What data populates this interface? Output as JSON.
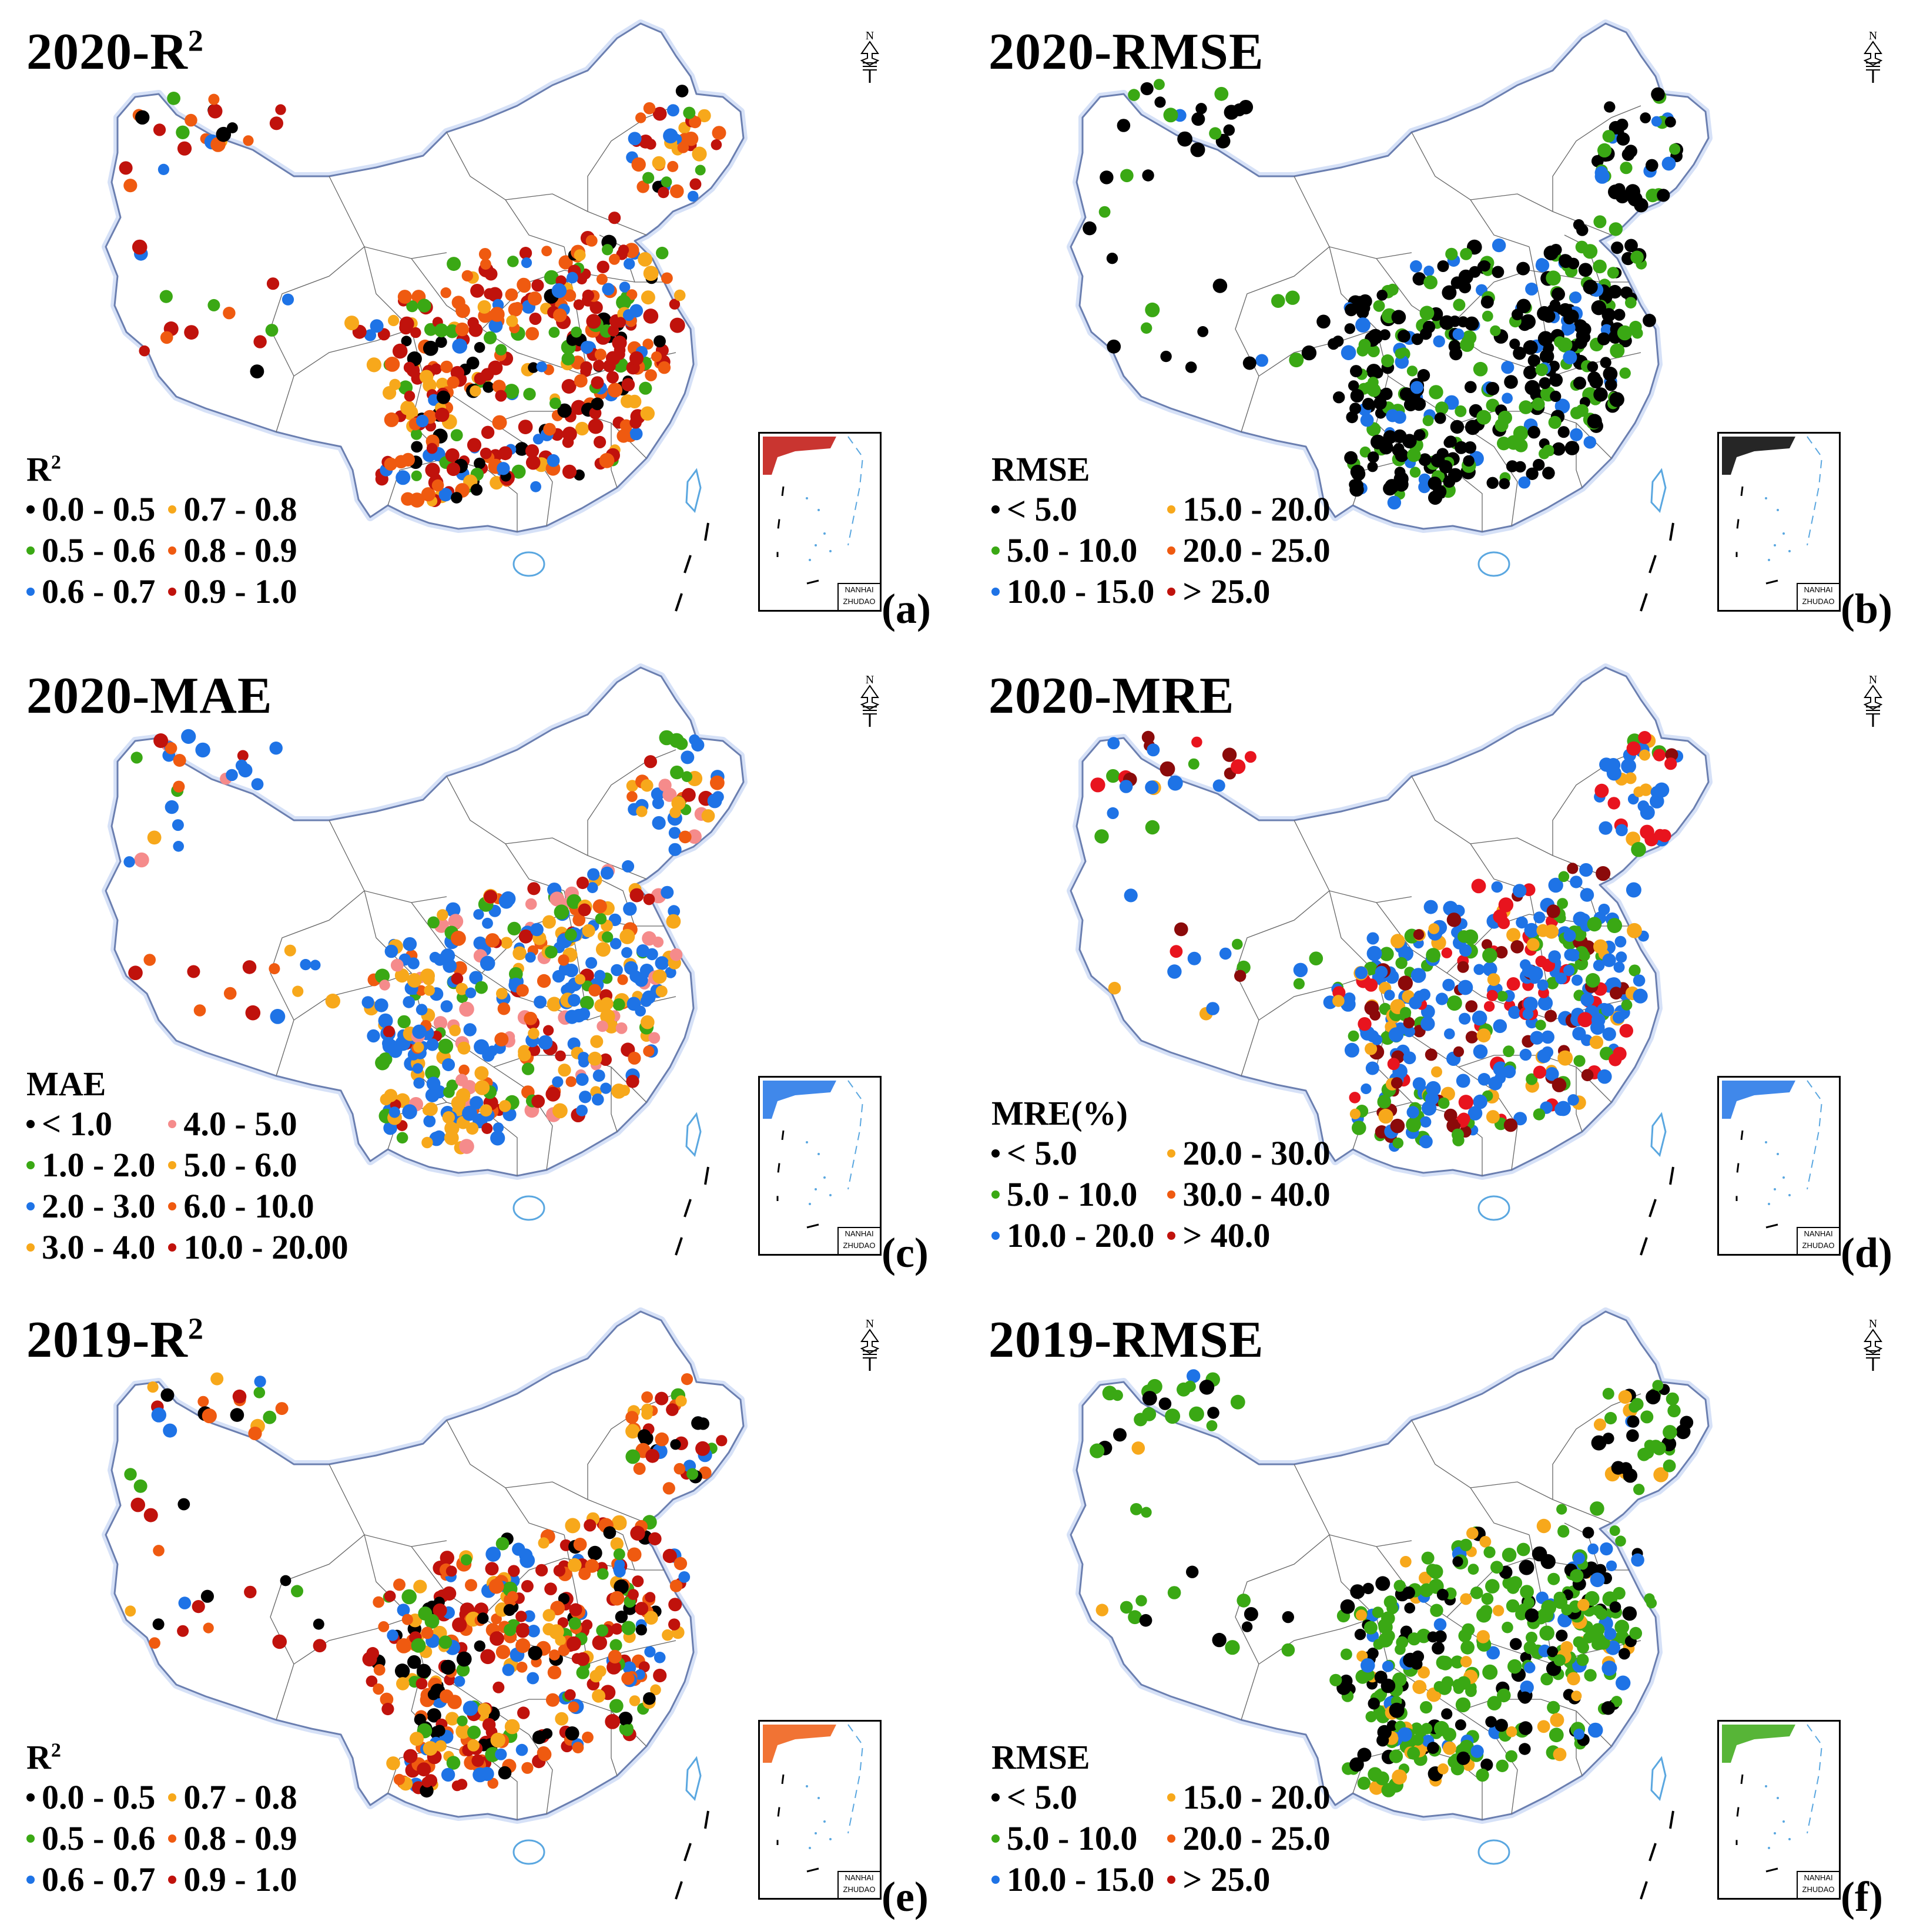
{
  "colors": {
    "black": "#000000",
    "green": "#3aa814",
    "blue": "#1e73e6",
    "orange": "#f7a81b",
    "darkorange": "#ef5a10",
    "red": "#c0120c",
    "pink": "#f58b8b",
    "brightred": "#e8141e",
    "darkred": "#8b0a0a",
    "border": "#666666",
    "coast": "#8aa9e8",
    "sea": "#5aa7e0"
  },
  "inset_caption": {
    "line1": "NANHAI",
    "line2": "ZHUDAO"
  },
  "compass_letter": "N",
  "panels": [
    {
      "id": "a",
      "title": "2020-R",
      "title_sup": "2",
      "label": "(a)",
      "legend": {
        "title": "R",
        "title_sup": "2",
        "items": [
          {
            "text": "0.0 - 0.5",
            "color": "#000000"
          },
          {
            "text": "0.7 - 0.8",
            "color": "#f7a81b"
          },
          {
            "text": "0.5 - 0.6",
            "color": "#3aa814"
          },
          {
            "text": "0.8 - 0.9",
            "color": "#ef5a10"
          },
          {
            "text": "0.6 - 0.7",
            "color": "#1e73e6"
          },
          {
            "text": "0.9 - 1.0",
            "color": "#c0120c"
          }
        ]
      },
      "dominant": "#c0120c",
      "mix": [
        "#c0120c",
        "#c0120c",
        "#c0120c",
        "#ef5a10",
        "#ef5a10",
        "#f7a81b",
        "#1e73e6",
        "#000000",
        "#3aa814"
      ]
    },
    {
      "id": "b",
      "title": "2020-RMSE",
      "title_sup": "",
      "label": "(b)",
      "legend": {
        "title": "RMSE",
        "title_sup": "",
        "items": [
          {
            "text": "< 5.0",
            "color": "#000000"
          },
          {
            "text": "15.0 - 20.0",
            "color": "#f7a81b"
          },
          {
            "text": "5.0 - 10.0",
            "color": "#3aa814"
          },
          {
            "text": "20.0 - 25.0",
            "color": "#ef5a10"
          },
          {
            "text": "10.0 - 15.0",
            "color": "#1e73e6"
          },
          {
            "text": "> 25.0",
            "color": "#c0120c"
          }
        ]
      },
      "dominant": "#000000",
      "mix": [
        "#000000",
        "#000000",
        "#000000",
        "#000000",
        "#3aa814",
        "#3aa814",
        "#1e73e6"
      ]
    },
    {
      "id": "c",
      "title": "2020-MAE",
      "title_sup": "",
      "label": "(c)",
      "legend": {
        "title": "MAE",
        "title_sup": "",
        "items": [
          {
            "text": "< 1.0",
            "color": "#000000"
          },
          {
            "text": "4.0 - 5.0",
            "color": "#f58b8b"
          },
          {
            "text": "1.0 - 2.0",
            "color": "#3aa814"
          },
          {
            "text": "5.0 - 6.0",
            "color": "#f7a81b"
          },
          {
            "text": "2.0 - 3.0",
            "color": "#1e73e6"
          },
          {
            "text": "6.0 - 10.0",
            "color": "#ef5a10"
          },
          {
            "text": "3.0 - 4.0",
            "color": "#f7a81b"
          },
          {
            "text": "10.0 - 20.00",
            "color": "#c0120c"
          }
        ]
      },
      "dominant": "#1e73e6",
      "mix": [
        "#1e73e6",
        "#1e73e6",
        "#1e73e6",
        "#f7a81b",
        "#f7a81b",
        "#3aa814",
        "#f58b8b",
        "#ef5a10",
        "#c0120c"
      ]
    },
    {
      "id": "d",
      "title": "2020-MRE",
      "title_sup": "",
      "label": "(d)",
      "legend": {
        "title": "MRE(%)",
        "title_sup": "",
        "items": [
          {
            "text": "< 5.0",
            "color": "#000000"
          },
          {
            "text": "20.0 - 30.0",
            "color": "#f7a81b"
          },
          {
            "text": "5.0 - 10.0",
            "color": "#3aa814"
          },
          {
            "text": "30.0 - 40.0",
            "color": "#ef5a10"
          },
          {
            "text": "10.0 - 20.0",
            "color": "#1e73e6"
          },
          {
            "text": "> 40.0",
            "color": "#c0120c"
          }
        ]
      },
      "dominant": "#1e73e6",
      "mix": [
        "#1e73e6",
        "#1e73e6",
        "#1e73e6",
        "#1e73e6",
        "#3aa814",
        "#3aa814",
        "#f7a81b",
        "#e8141e",
        "#8b0a0a"
      ]
    },
    {
      "id": "e",
      "title": "2019-R",
      "title_sup": "2",
      "label": "(e)",
      "legend": {
        "title": "R",
        "title_sup": "2",
        "items": [
          {
            "text": "0.0 - 0.5",
            "color": "#000000"
          },
          {
            "text": "0.7 - 0.8",
            "color": "#f7a81b"
          },
          {
            "text": "0.5 - 0.6",
            "color": "#3aa814"
          },
          {
            "text": "0.8 - 0.9",
            "color": "#ef5a10"
          },
          {
            "text": "0.6 - 0.7",
            "color": "#1e73e6"
          },
          {
            "text": "0.9 - 1.0",
            "color": "#c0120c"
          }
        ]
      },
      "dominant": "#ef5a10",
      "mix": [
        "#ef5a10",
        "#ef5a10",
        "#c0120c",
        "#c0120c",
        "#f7a81b",
        "#1e73e6",
        "#000000",
        "#3aa814"
      ]
    },
    {
      "id": "f",
      "title": "2019-RMSE",
      "title_sup": "",
      "label": "(f)",
      "legend": {
        "title": "RMSE",
        "title_sup": "",
        "items": [
          {
            "text": "< 5.0",
            "color": "#000000"
          },
          {
            "text": "15.0 - 20.0",
            "color": "#f7a81b"
          },
          {
            "text": "5.0 - 10.0",
            "color": "#3aa814"
          },
          {
            "text": "20.0 - 25.0",
            "color": "#ef5a10"
          },
          {
            "text": "10.0 - 15.0",
            "color": "#1e73e6"
          },
          {
            "text": "> 25.0",
            "color": "#c0120c"
          }
        ]
      },
      "dominant": "#3aa814",
      "mix": [
        "#3aa814",
        "#3aa814",
        "#3aa814",
        "#3aa814",
        "#000000",
        "#000000",
        "#1e73e6",
        "#f7a81b"
      ]
    }
  ]
}
